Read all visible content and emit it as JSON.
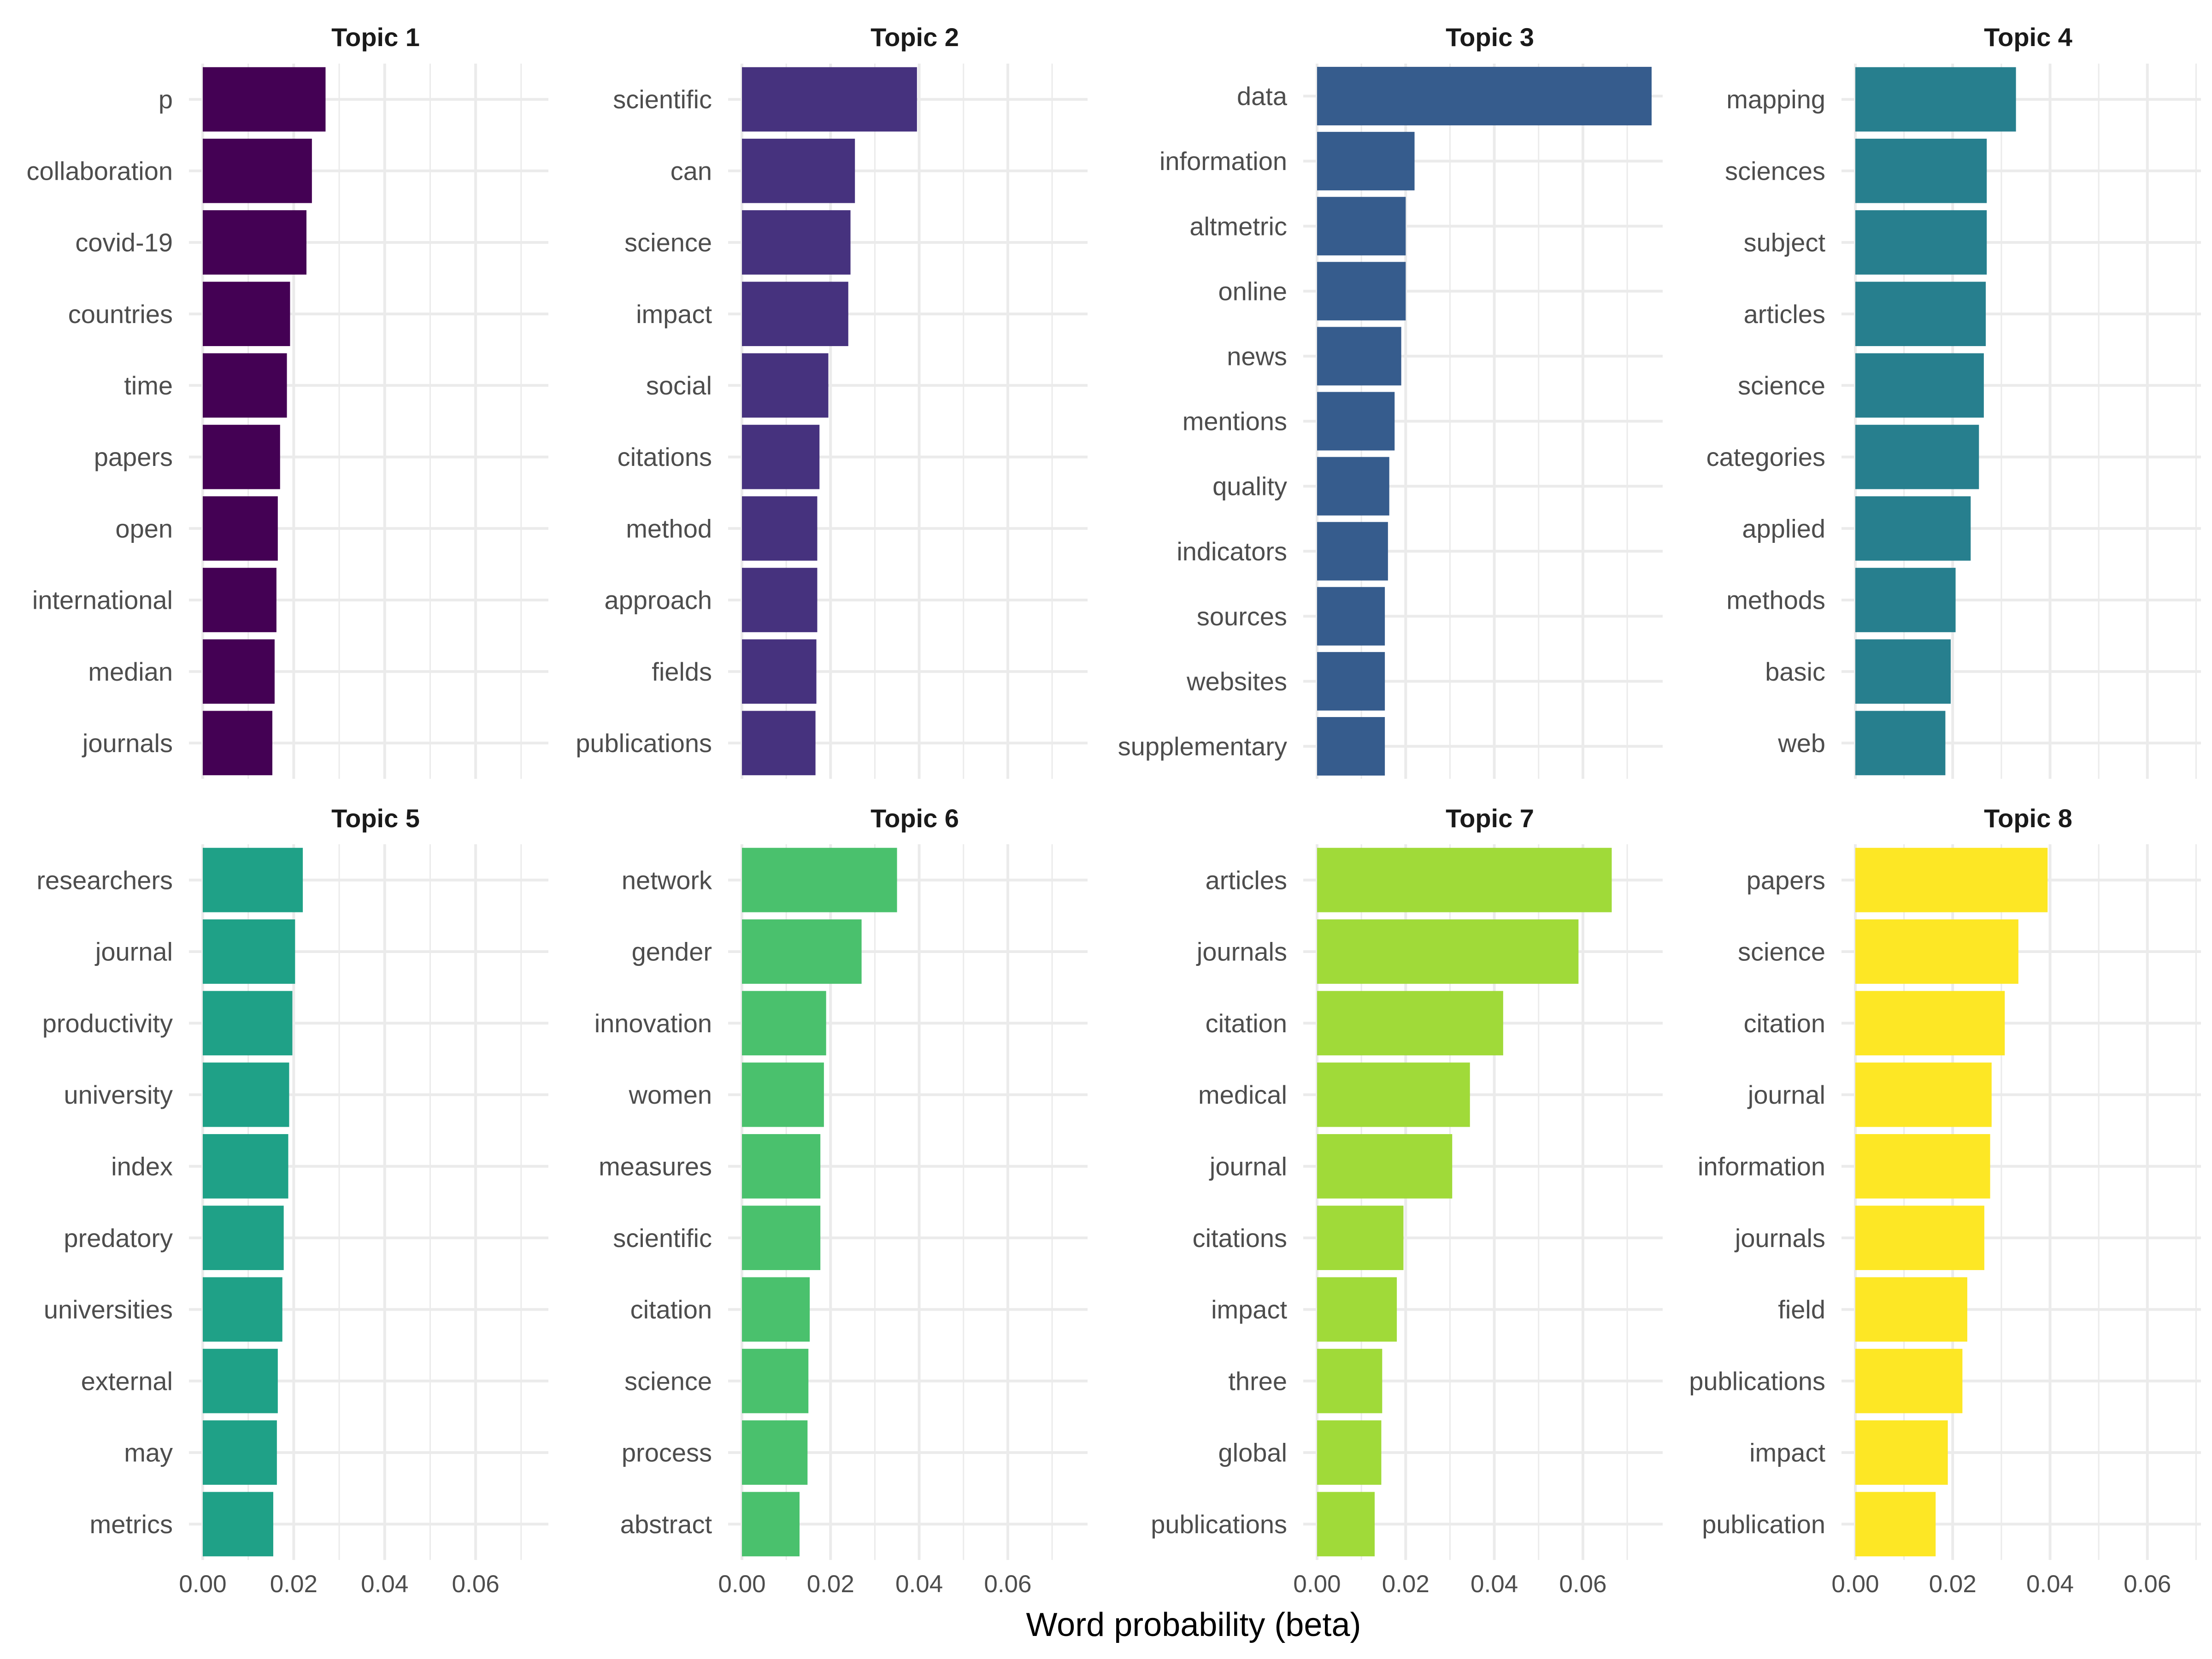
{
  "chart_data": {
    "type": "bar",
    "orientation": "horizontal",
    "facets": "2 rows x 4 columns",
    "x_axis_scales": "free per panel (top-row panels show no tick labels)",
    "xlabel": "Word probability (beta)",
    "xticks": [
      "0.00",
      "0.02",
      "0.04",
      "0.06"
    ],
    "grid": true,
    "legend": "none",
    "panels": [
      {
        "title": "Topic 1",
        "color": "#440154",
        "xlim": [
          0,
          0.076
        ],
        "categories": [
          "p",
          "collaboration",
          "covid-19",
          "countries",
          "time",
          "papers",
          "open",
          "international",
          "median",
          "journals"
        ],
        "values": [
          0.027,
          0.024,
          0.0228,
          0.0192,
          0.0185,
          0.017,
          0.0165,
          0.0162,
          0.0158,
          0.0153
        ]
      },
      {
        "title": "Topic 2",
        "color": "#46327e",
        "xlim": [
          0,
          0.078
        ],
        "categories": [
          "scientific",
          "can",
          "science",
          "impact",
          "social",
          "citations",
          "method",
          "approach",
          "fields",
          "publications"
        ],
        "values": [
          0.0395,
          0.0255,
          0.0245,
          0.024,
          0.0195,
          0.0175,
          0.017,
          0.017,
          0.0168,
          0.0166
        ]
      },
      {
        "title": "Topic 3",
        "color": "#365c8d",
        "xlim": [
          0,
          0.078
        ],
        "categories": [
          "data",
          "information",
          "altmetric",
          "online",
          "news",
          "mentions",
          "quality",
          "indicators",
          "sources",
          "websites",
          "supplementary"
        ],
        "values": [
          0.0755,
          0.022,
          0.02,
          0.02,
          0.019,
          0.0175,
          0.0163,
          0.016,
          0.0153,
          0.0153,
          0.0153
        ]
      },
      {
        "title": "Topic 4",
        "color": "#277f8e",
        "xlim": [
          0,
          0.071
        ],
        "categories": [
          "mapping",
          "sciences",
          "subject",
          "articles",
          "science",
          "categories",
          "applied",
          "methods",
          "basic",
          "web"
        ],
        "values": [
          0.033,
          0.027,
          0.027,
          0.0268,
          0.0264,
          0.0254,
          0.0237,
          0.0206,
          0.0196,
          0.0185
        ]
      },
      {
        "title": "Topic 5",
        "color": "#1fa187",
        "xlim": [
          0,
          0.076
        ],
        "categories": [
          "researchers",
          "journal",
          "productivity",
          "university",
          "index",
          "predatory",
          "universities",
          "external",
          "may",
          "metrics"
        ],
        "values": [
          0.022,
          0.0203,
          0.0197,
          0.019,
          0.0188,
          0.0178,
          0.0175,
          0.0165,
          0.0163,
          0.0155
        ]
      },
      {
        "title": "Topic 6",
        "color": "#4ac16d",
        "xlim": [
          0,
          0.078
        ],
        "categories": [
          "network",
          "gender",
          "innovation",
          "women",
          "measures",
          "scientific",
          "citation",
          "science",
          "process",
          "abstract"
        ],
        "values": [
          0.035,
          0.027,
          0.019,
          0.0185,
          0.0177,
          0.0177,
          0.0153,
          0.015,
          0.0148,
          0.013
        ]
      },
      {
        "title": "Topic 7",
        "color": "#a0da39",
        "xlim": [
          0,
          0.078
        ],
        "categories": [
          "articles",
          "journals",
          "citation",
          "medical",
          "journal",
          "citations",
          "impact",
          "three",
          "global",
          "publications"
        ],
        "values": [
          0.0665,
          0.059,
          0.042,
          0.0345,
          0.0305,
          0.0195,
          0.018,
          0.0147,
          0.0145,
          0.013
        ]
      },
      {
        "title": "Topic 8",
        "color": "#fde725",
        "xlim": [
          0,
          0.071
        ],
        "categories": [
          "papers",
          "science",
          "citation",
          "journal",
          "information",
          "journals",
          "field",
          "publications",
          "impact",
          "publication"
        ],
        "values": [
          0.0395,
          0.0335,
          0.0307,
          0.028,
          0.0277,
          0.0265,
          0.023,
          0.022,
          0.019,
          0.0165
        ]
      }
    ]
  }
}
